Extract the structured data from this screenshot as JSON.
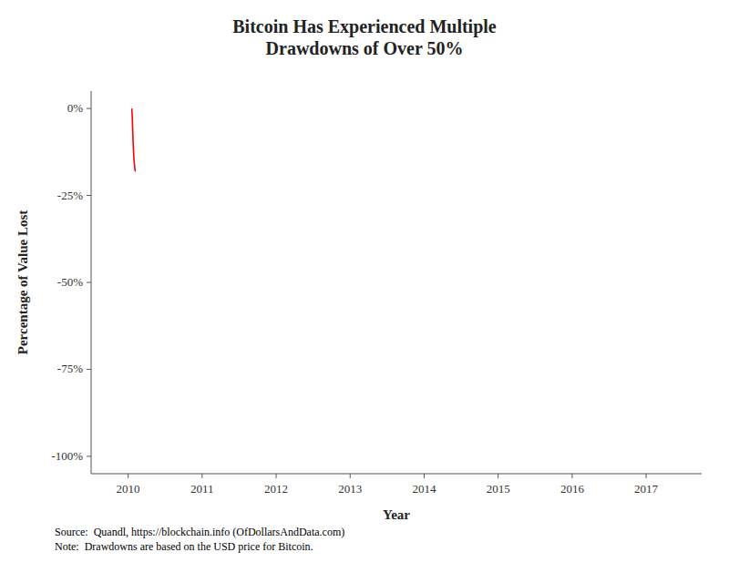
{
  "chart_data": {
    "type": "line",
    "title": "Bitcoin Has Experienced Multiple\nDrawdowns of Over 50%",
    "x_label": "Year",
    "y_label": "Percentage of Value Lost",
    "x": [
      2010.05,
      2010.055,
      2010.06,
      2010.065,
      2010.07,
      2010.075,
      2010.08,
      2010.085,
      2010.09,
      2010.095,
      2010.1
    ],
    "values": [
      0.0,
      -0.02,
      -0.05,
      -0.08,
      -0.11,
      -0.13,
      -0.15,
      -0.16,
      -0.17,
      -0.18,
      -0.18
    ],
    "color": "#FF0000",
    "xlim": [
      2009.5,
      2017.75
    ],
    "ylim": [
      -1.05,
      0.05
    ],
    "xticks": [
      2010,
      2011,
      2012,
      2013,
      2014,
      2015,
      2016,
      2017
    ],
    "yticks": [
      {
        "value": 0,
        "label": "0%"
      },
      {
        "value": -0.25,
        "label": "-25%"
      },
      {
        "value": -0.5,
        "label": "-50%"
      },
      {
        "value": -0.75,
        "label": "-75%"
      },
      {
        "value": -1.0,
        "label": "-100%"
      }
    ],
    "annotations": [
      "Source:  Quandl, https://blockchain.info (OfDollarsAndData.com)\nNote:  Drawdowns are based on the USD price for Bitcoin."
    ],
    "grid": false
  }
}
